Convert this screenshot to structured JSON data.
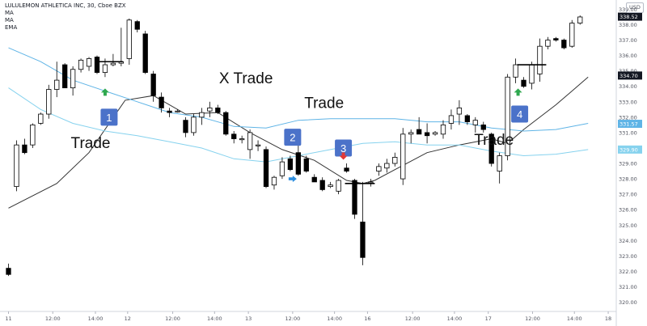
{
  "header": {
    "symbol_line": "LULULEMON ATHLETICA INC, 30, Cboe BZX",
    "indicators": [
      "MA",
      "MA",
      "EMA"
    ]
  },
  "currency_button": "USD",
  "colors": {
    "background": "#ffffff",
    "candle_edge": "#000000",
    "ma_fast": "#333333",
    "ma_slow": "#5fb4e6",
    "ema": "#86d2ee",
    "signal_badge": "#4b72c9",
    "signal_up": "#2fa84f",
    "signal_down": "#e53935",
    "signal_blue": "#2f8fdf",
    "axis_text": "#50535e"
  },
  "chart_data": {
    "type": "candlestick",
    "ylim": [
      319.4,
      339.6
    ],
    "price_ticks": [
      339.0,
      338.0,
      337.0,
      336.0,
      335.0,
      334.0,
      333.0,
      332.0,
      331.0,
      330.0,
      329.0,
      328.0,
      327.0,
      326.0,
      325.0,
      324.0,
      323.0,
      322.0,
      321.0,
      320.0
    ],
    "price_badges": [
      {
        "label": "338.52",
        "value": 338.52,
        "color": "#131722"
      },
      {
        "label": "334.70",
        "value": 334.7,
        "color": "#131722"
      },
      {
        "label": "331.57",
        "value": 331.57,
        "color": "#5fb4e6"
      },
      {
        "label": "329.90",
        "value": 329.9,
        "color": "#86d2ee"
      }
    ],
    "time_ticks": [
      {
        "label": "11",
        "x": 0
      },
      {
        "label": "12:00",
        "x": 5.5
      },
      {
        "label": "14:00",
        "x": 10.8
      },
      {
        "label": "12",
        "x": 14.8
      },
      {
        "label": "12:00",
        "x": 20.4
      },
      {
        "label": "14:00",
        "x": 25.6
      },
      {
        "label": "13",
        "x": 29.8
      },
      {
        "label": "12:00",
        "x": 35.3
      },
      {
        "label": "14:00",
        "x": 40.5
      },
      {
        "label": "16",
        "x": 44.6
      },
      {
        "label": "12:00",
        "x": 50.2
      },
      {
        "label": "14:00",
        "x": 55.4
      },
      {
        "label": "17",
        "x": 59.6
      },
      {
        "label": "12:00",
        "x": 65.1
      },
      {
        "label": "14:00",
        "x": 70.3
      },
      {
        "label": "18",
        "x": 74.5
      }
    ],
    "candles": [
      {
        "o": 322.2,
        "h": 322.5,
        "l": 321.7,
        "c": 321.8
      },
      {
        "o": 327.5,
        "h": 330.5,
        "l": 327.2,
        "c": 330.2
      },
      {
        "o": 330.2,
        "h": 330.6,
        "l": 329.6,
        "c": 329.7
      },
      {
        "o": 330.2,
        "h": 331.6,
        "l": 330.0,
        "c": 331.5
      },
      {
        "o": 331.6,
        "h": 332.3,
        "l": 331.5,
        "c": 332.2
      },
      {
        "o": 332.2,
        "h": 334.1,
        "l": 331.9,
        "c": 333.8
      },
      {
        "o": 333.8,
        "h": 335.6,
        "l": 333.3,
        "c": 334.4
      },
      {
        "o": 335.4,
        "h": 335.5,
        "l": 333.9,
        "c": 333.9
      },
      {
        "o": 333.9,
        "h": 335.3,
        "l": 333.4,
        "c": 335.1
      },
      {
        "o": 335.1,
        "h": 335.8,
        "l": 334.9,
        "c": 335.7
      },
      {
        "o": 335.3,
        "h": 335.9,
        "l": 335.0,
        "c": 335.8
      },
      {
        "o": 335.9,
        "h": 336.0,
        "l": 334.8,
        "c": 334.9
      },
      {
        "o": 334.9,
        "h": 335.8,
        "l": 334.6,
        "c": 335.4
      },
      {
        "o": 335.4,
        "h": 336.1,
        "l": 335.3,
        "c": 335.5
      },
      {
        "o": 335.5,
        "h": 337.8,
        "l": 335.3,
        "c": 335.6
      },
      {
        "o": 335.8,
        "h": 338.4,
        "l": 335.4,
        "c": 338.3
      },
      {
        "o": 338.2,
        "h": 338.3,
        "l": 337.5,
        "c": 337.7
      },
      {
        "o": 337.4,
        "h": 337.6,
        "l": 334.8,
        "c": 334.9
      },
      {
        "o": 334.8,
        "h": 335.0,
        "l": 333.0,
        "c": 333.4
      },
      {
        "o": 333.3,
        "h": 333.6,
        "l": 332.3,
        "c": 332.6
      },
      {
        "o": 332.4,
        "h": 332.6,
        "l": 332.0,
        "c": 332.3
      },
      {
        "o": 332.4,
        "h": 332.5,
        "l": 332.3,
        "c": 332.4
      },
      {
        "o": 331.8,
        "h": 332.0,
        "l": 330.7,
        "c": 331.0
      },
      {
        "o": 331.0,
        "h": 332.2,
        "l": 330.8,
        "c": 332.0
      },
      {
        "o": 332.0,
        "h": 332.6,
        "l": 331.5,
        "c": 332.3
      },
      {
        "o": 332.4,
        "h": 333.0,
        "l": 332.0,
        "c": 332.6
      },
      {
        "o": 332.6,
        "h": 332.8,
        "l": 332.2,
        "c": 332.3
      },
      {
        "o": 332.3,
        "h": 332.4,
        "l": 330.8,
        "c": 330.9
      },
      {
        "o": 330.9,
        "h": 331.1,
        "l": 330.3,
        "c": 330.6
      },
      {
        "o": 330.6,
        "h": 330.8,
        "l": 330.3,
        "c": 330.6
      },
      {
        "o": 329.9,
        "h": 331.2,
        "l": 329.3,
        "c": 331.0
      },
      {
        "o": 330.2,
        "h": 330.5,
        "l": 329.8,
        "c": 330.2
      },
      {
        "o": 329.9,
        "h": 330.1,
        "l": 327.4,
        "c": 327.5
      },
      {
        "o": 327.6,
        "h": 328.2,
        "l": 327.3,
        "c": 328.1
      },
      {
        "o": 328.2,
        "h": 329.4,
        "l": 328.0,
        "c": 329.1
      },
      {
        "o": 329.3,
        "h": 329.5,
        "l": 328.5,
        "c": 328.6
      },
      {
        "o": 329.7,
        "h": 330.6,
        "l": 328.2,
        "c": 328.3
      },
      {
        "o": 329.3,
        "h": 329.5,
        "l": 328.4,
        "c": 328.5
      },
      {
        "o": 328.1,
        "h": 328.3,
        "l": 327.8,
        "c": 327.8
      },
      {
        "o": 327.9,
        "h": 328.1,
        "l": 327.2,
        "c": 327.3
      },
      {
        "o": 327.5,
        "h": 327.8,
        "l": 327.4,
        "c": 327.6
      },
      {
        "o": 327.2,
        "h": 328.0,
        "l": 327.0,
        "c": 327.9
      },
      {
        "o": 328.7,
        "h": 329.0,
        "l": 328.4,
        "c": 328.5
      },
      {
        "o": 327.9,
        "h": 328.0,
        "l": 325.4,
        "c": 325.7
      },
      {
        "o": 325.2,
        "h": 327.8,
        "l": 322.4,
        "c": 322.9
      },
      {
        "o": 327.8,
        "h": 328.0,
        "l": 327.5,
        "c": 327.8
      },
      {
        "o": 328.5,
        "h": 329.0,
        "l": 328.2,
        "c": 328.8
      },
      {
        "o": 328.7,
        "h": 329.3,
        "l": 328.4,
        "c": 329.0
      },
      {
        "o": 329.0,
        "h": 329.7,
        "l": 328.8,
        "c": 329.4
      },
      {
        "o": 328.0,
        "h": 331.3,
        "l": 327.6,
        "c": 330.9
      },
      {
        "o": 330.9,
        "h": 331.2,
        "l": 330.3,
        "c": 331.0
      },
      {
        "o": 331.2,
        "h": 332.0,
        "l": 330.9,
        "c": 330.9
      },
      {
        "o": 331.0,
        "h": 331.6,
        "l": 330.3,
        "c": 330.8
      },
      {
        "o": 330.9,
        "h": 331.1,
        "l": 330.8,
        "c": 331.0
      },
      {
        "o": 330.9,
        "h": 331.8,
        "l": 330.6,
        "c": 331.5
      },
      {
        "o": 331.6,
        "h": 332.5,
        "l": 331.2,
        "c": 332.1
      },
      {
        "o": 332.2,
        "h": 333.1,
        "l": 331.5,
        "c": 332.6
      },
      {
        "o": 332.1,
        "h": 332.2,
        "l": 331.5,
        "c": 331.7
      },
      {
        "o": 331.5,
        "h": 332.0,
        "l": 331.0,
        "c": 331.8
      },
      {
        "o": 331.5,
        "h": 331.7,
        "l": 331.0,
        "c": 331.2
      },
      {
        "o": 330.9,
        "h": 331.0,
        "l": 328.8,
        "c": 329.0
      },
      {
        "o": 328.5,
        "h": 329.7,
        "l": 327.7,
        "c": 329.5
      },
      {
        "o": 329.5,
        "h": 334.8,
        "l": 329.2,
        "c": 334.6
      },
      {
        "o": 334.6,
        "h": 335.8,
        "l": 334.2,
        "c": 335.4
      },
      {
        "o": 334.4,
        "h": 334.6,
        "l": 333.9,
        "c": 334.0
      },
      {
        "o": 334.2,
        "h": 335.6,
        "l": 333.8,
        "c": 335.4
      },
      {
        "o": 334.8,
        "h": 337.1,
        "l": 334.3,
        "c": 336.6
      },
      {
        "o": 336.6,
        "h": 337.2,
        "l": 336.4,
        "c": 337.0
      },
      {
        "o": 337.1,
        "h": 337.2,
        "l": 336.9,
        "c": 337.0
      },
      {
        "o": 337.0,
        "h": 337.1,
        "l": 336.4,
        "c": 336.5
      },
      {
        "o": 336.6,
        "h": 338.3,
        "l": 336.5,
        "c": 338.1
      },
      {
        "o": 338.1,
        "h": 338.6,
        "l": 338.0,
        "c": 338.5
      }
    ],
    "series": [
      {
        "key": "ma_fast",
        "x": [
          0,
          6,
          10,
          14.5,
          18,
          22,
          26,
          30,
          34,
          38,
          42,
          44,
          45.5,
          48,
          52,
          56,
          60,
          62,
          64,
          66,
          68,
          70,
          72
        ],
        "y": [
          326.1,
          327.7,
          329.7,
          333.1,
          333.4,
          332.2,
          332.3,
          331.0,
          329.9,
          329.2,
          327.9,
          327.7,
          327.9,
          328.6,
          329.7,
          330.2,
          330.6,
          330.3,
          331.2,
          332.0,
          332.8,
          333.7,
          334.6
        ]
      },
      {
        "key": "ma_slow",
        "x": [
          0,
          4,
          8,
          12,
          16,
          20,
          24,
          28,
          32,
          36,
          40,
          44,
          48,
          52,
          56,
          60,
          64,
          68,
          72
        ],
        "y": [
          336.5,
          335.6,
          334.4,
          333.7,
          333.0,
          332.3,
          332.0,
          331.4,
          331.3,
          331.8,
          331.9,
          331.9,
          331.9,
          331.7,
          331.7,
          331.3,
          331.1,
          331.2,
          331.6
        ]
      },
      {
        "key": "ema",
        "x": [
          0,
          4,
          8,
          12,
          16,
          20,
          24,
          28,
          32,
          36,
          40,
          44,
          48,
          52,
          56,
          60,
          64,
          68,
          72
        ],
        "y": [
          333.9,
          332.5,
          331.6,
          331.1,
          330.8,
          330.4,
          330.0,
          329.3,
          329.1,
          329.5,
          329.9,
          330.3,
          330.4,
          330.2,
          330.2,
          329.8,
          329.5,
          329.6,
          329.9
        ]
      }
    ],
    "stop_lines": [
      {
        "x0": 10.8,
        "x1": 14.2,
        "value": 335.6
      },
      {
        "x0": 41.8,
        "x1": 45.5,
        "value": 327.7
      },
      {
        "x0": 63.2,
        "x1": 66.8,
        "value": 335.4
      }
    ],
    "annotations": [
      {
        "label": "Trade",
        "x": 10.2,
        "value": 330.0
      },
      {
        "label": "X Trade",
        "x": 29.5,
        "value": 334.2
      },
      {
        "label": "Trade",
        "x": 39.2,
        "value": 332.6
      },
      {
        "label": "Trade",
        "x": 60.3,
        "value": 330.2
      }
    ],
    "signals": [
      {
        "label": "1",
        "x": 12.5,
        "value": 332.0,
        "arrow": "up",
        "arrow_x": 12.0,
        "arrow_value": 333.6
      },
      {
        "label": "2",
        "x": 35.3,
        "value": 330.7,
        "arrow": "right",
        "arrow_x": 35.2,
        "arrow_value": 328.0
      },
      {
        "label": "3",
        "x": 41.6,
        "value": 330.0,
        "arrow": "down",
        "arrow_x": 41.6,
        "arrow_value": 329.5
      },
      {
        "label": "4",
        "x": 63.5,
        "value": 332.2,
        "arrow": "up",
        "arrow_x": 63.3,
        "arrow_value": 333.6
      }
    ]
  }
}
